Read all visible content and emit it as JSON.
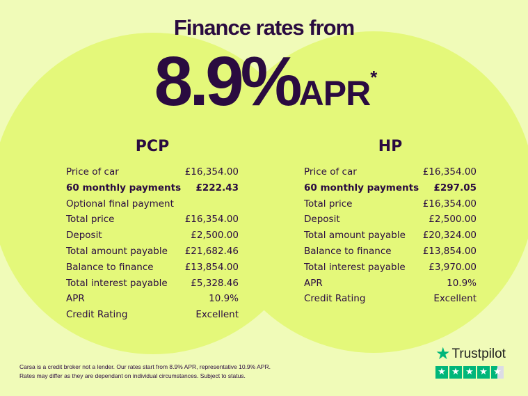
{
  "headline": {
    "subtitle": "Finance rates from",
    "rate": "8.9%",
    "apr": "APR",
    "asterisk": "*"
  },
  "pcp": {
    "title": "PCP",
    "rows": [
      {
        "label": "Price of car",
        "value": "£16,354.00"
      },
      {
        "label": "60 monthly payments",
        "value": "£222.43",
        "bold": true
      },
      {
        "label": "Optional final payment",
        "value": ""
      },
      {
        "label": "Total price",
        "value": "£16,354.00"
      },
      {
        "label": "Deposit",
        "value": "£2,500.00"
      },
      {
        "label": "Total amount payable",
        "value": "£21,682.46"
      },
      {
        "label": "Balance to finance",
        "value": "£13,854.00"
      },
      {
        "label": "Total interest payable",
        "value": "£5,328.46"
      },
      {
        "label": "APR",
        "value": "10.9%"
      },
      {
        "label": "Credit Rating",
        "value": "Excellent"
      }
    ]
  },
  "hp": {
    "title": "HP",
    "rows": [
      {
        "label": "Price of car",
        "value": "£16,354.00"
      },
      {
        "label": "60 monthly payments",
        "value": "£297.05",
        "bold": true
      },
      {
        "label": "Total price",
        "value": "£16,354.00"
      },
      {
        "label": "Deposit",
        "value": "£2,500.00"
      },
      {
        "label": "Total amount payable",
        "value": "£20,324.00"
      },
      {
        "label": "Balance to finance",
        "value": "£13,854.00"
      },
      {
        "label": "Total interest payable",
        "value": "£3,970.00"
      },
      {
        "label": "APR",
        "value": "10.9%"
      },
      {
        "label": "Credit Rating",
        "value": "Excellent"
      }
    ]
  },
  "disclaimer": {
    "line1": "Carsa is a credit broker not a lender. Our rates start from 8.9% APR, representative 10.9% APR.",
    "line2": "Rates may differ as they are dependant on individual circumstances. Subject to status."
  },
  "trustpilot": {
    "name": "Trustpilot",
    "rating": 4.5,
    "max": 5,
    "icon": "star-icon"
  },
  "colors": {
    "background": "#f0fbb8",
    "circle": "#e4f87a",
    "text": "#2a0b40",
    "trustpilot_green": "#00b67a"
  }
}
